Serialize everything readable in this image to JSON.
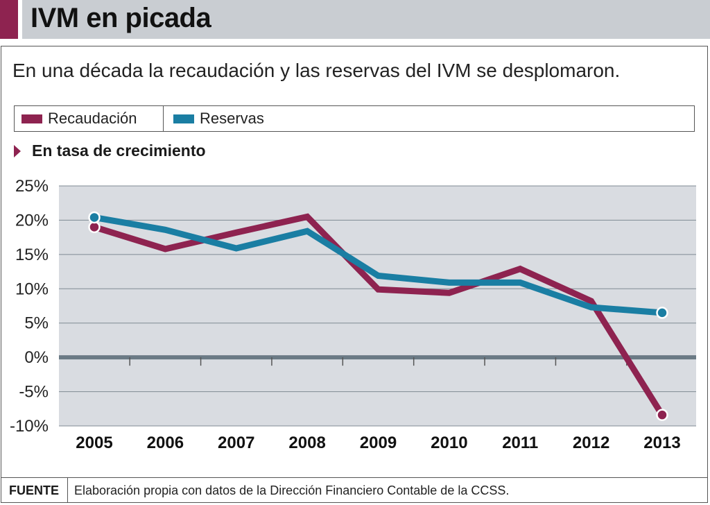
{
  "header": {
    "title": "IVM en picada",
    "subtitle": "En una década la recaudación y las reservas del IVM se desplomaron."
  },
  "section_label": "En tasa de crecimiento",
  "footer": {
    "label": "FUENTE",
    "text": "Elaboración propia con datos de la Dirección Financiero Contable de la CCSS."
  },
  "colors": {
    "recaudacion": "#8e2350",
    "reservas": "#1a7ea3",
    "plot_bg": "#d9dce1",
    "zero_line": "#6b7a85"
  },
  "chart_data": {
    "type": "line",
    "title": "En tasa de crecimiento",
    "xlabel": "",
    "ylabel": "",
    "x": [
      "2005",
      "2006",
      "2007",
      "2008",
      "2009",
      "2010",
      "2011",
      "2012",
      "2013"
    ],
    "ylim": [
      -10,
      25
    ],
    "yticks": [
      25,
      20,
      15,
      10,
      5,
      0,
      -5,
      -10
    ],
    "ytick_labels": [
      "25%",
      "20%",
      "15%",
      "10%",
      "5%",
      "0%",
      "-5%",
      "-10%"
    ],
    "grid": true,
    "legend_position": "top",
    "series": [
      {
        "name": "Recaudación",
        "values": [
          19.0,
          15.8,
          18.2,
          20.5,
          9.9,
          9.4,
          12.9,
          8.2,
          -8.4
        ]
      },
      {
        "name": "Reservas",
        "values": [
          20.4,
          18.6,
          15.9,
          18.4,
          11.9,
          10.9,
          10.9,
          7.3,
          6.5
        ]
      }
    ]
  }
}
